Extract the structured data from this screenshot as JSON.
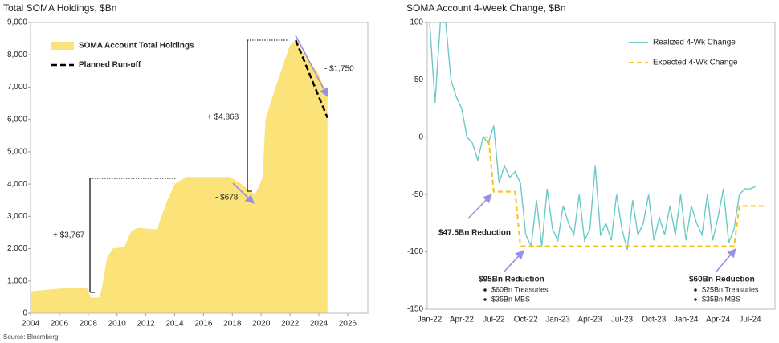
{
  "chart_data": [
    {
      "type": "area",
      "title": "Total SOMA Holdings, $Bn",
      "source": "Source: Bloomberg",
      "x": [
        2004,
        2005,
        2006,
        2007,
        2007.9,
        2008.2,
        2008.8,
        2009,
        2009.3,
        2009.7,
        2010.5,
        2011,
        2011.5,
        2012,
        2012.8,
        2013,
        2013.5,
        2014,
        2014.8,
        2016,
        2017.8,
        2018.5,
        2019.3,
        2019.6,
        2019.9,
        2020.1,
        2020.3,
        2021,
        2022,
        2022.4,
        2023,
        2024,
        2024.6
      ],
      "series": [
        {
          "name": "SOMA Account Total Holdings",
          "color": "#fbe37a",
          "values": [
            680,
            720,
            760,
            780,
            780,
            480,
            490,
            900,
            1700,
            2000,
            2050,
            2550,
            2650,
            2620,
            2600,
            2900,
            3500,
            4000,
            4220,
            4220,
            4220,
            4050,
            3750,
            3700,
            4000,
            4200,
            6000,
            7000,
            8300,
            8450,
            8000,
            7400,
            6700
          ]
        },
        {
          "name": "Planned Run-off",
          "color": "#000000",
          "dashed": true,
          "x": [
            2022.4,
            2024.6
          ],
          "values": [
            8450,
            6050
          ]
        }
      ],
      "xlim": [
        2004,
        2027.4
      ],
      "xticks": [
        2004,
        2006,
        2008,
        2010,
        2012,
        2014,
        2016,
        2018,
        2020,
        2022,
        2024,
        2026
      ],
      "ylim": [
        0,
        9000
      ],
      "yticks": [
        0,
        {
          "value": 1000,
          "label": "1,000"
        },
        {
          "value": 2000,
          "label": "2,000"
        },
        {
          "value": 3000,
          "label": "3,000"
        },
        {
          "value": 4000,
          "label": "4,000"
        },
        {
          "value": 5000,
          "label": "5,000"
        },
        {
          "value": 6000,
          "label": "6,000"
        },
        {
          "value": 7000,
          "label": "7,000"
        },
        {
          "value": 8000,
          "label": "8,000"
        },
        {
          "value": 9000,
          "label": "9,000"
        }
      ],
      "legend": "top-left",
      "annotations": [
        "+ $3,767",
        "- $678",
        "+ $4,868",
        "- $1,750"
      ]
    },
    {
      "type": "line",
      "title": "SOMA Account 4-Week Change, $Bn",
      "categories": [
        "Jan-22",
        null,
        null,
        null,
        null,
        null,
        "Apr-22",
        null,
        null,
        null,
        null,
        null,
        "Jul-22",
        null,
        null,
        null,
        null,
        null,
        "Oct-22",
        null,
        null,
        null,
        null,
        null,
        "Jan-23",
        null,
        null,
        null,
        null,
        null,
        "Apr-23",
        null,
        null,
        null,
        null,
        null,
        "Jul-23",
        null,
        null,
        null,
        null,
        null,
        "Oct-23",
        null,
        null,
        null,
        null,
        null,
        "Jan-24",
        null,
        null,
        null,
        null,
        null,
        "Apr-24",
        null,
        null,
        null,
        null,
        null,
        "Jul-24",
        null,
        null,
        null
      ],
      "series": [
        {
          "name": "Realized 4-Wk Change",
          "color": "#6ccac6",
          "values": [
            100,
            30,
            100,
            100,
            50,
            35,
            25,
            0,
            -5,
            -20,
            0,
            -5,
            10,
            -40,
            -25,
            -35,
            -30,
            -40,
            -85,
            -95,
            -55,
            -95,
            -45,
            -80,
            -90,
            -60,
            -75,
            -85,
            -50,
            -90,
            -80,
            -25,
            -85,
            -75,
            -90,
            -50,
            -80,
            -98,
            -55,
            -85,
            -75,
            -50,
            -90,
            -70,
            -85,
            -60,
            -85,
            -50,
            -90,
            -60,
            -75,
            -85,
            -50,
            -90,
            -70,
            -45,
            -92,
            -80,
            -50,
            -45,
            -45,
            -43,
            null,
            null
          ]
        },
        {
          "name": "Expected 4-Wk Change",
          "color": "#f7c21b",
          "dashed": true,
          "values": [
            null,
            null,
            null,
            null,
            null,
            null,
            null,
            null,
            null,
            null,
            0,
            0,
            -47.5,
            -47.5,
            -47.5,
            -47.5,
            -47.5,
            -95,
            -95,
            -95,
            -95,
            -95,
            -95,
            -95,
            -95,
            -95,
            -95,
            -95,
            -95,
            -95,
            -95,
            -95,
            -95,
            -95,
            -95,
            -95,
            -95,
            -95,
            -95,
            -95,
            -95,
            -95,
            -95,
            -95,
            -95,
            -95,
            -95,
            -95,
            -95,
            -95,
            -95,
            -95,
            -95,
            -95,
            -95,
            -95,
            -95,
            -95,
            -60,
            -60,
            -60,
            -60,
            -60,
            -60
          ]
        }
      ],
      "ylim": [
        -150,
        100
      ],
      "yticks": [
        -150,
        -100,
        -50,
        0,
        50,
        100
      ],
      "legend": "top-right",
      "annotations": [
        {
          "text": "$47.5Bn Reduction"
        },
        {
          "text": "$95Bn Reduction",
          "items": [
            "$60Bn Treasuries",
            "$35Bn MBS"
          ]
        },
        {
          "text": "$60Bn Reduction",
          "items": [
            "$25Bn Treasuries",
            "$35Bn MBS"
          ]
        }
      ]
    }
  ]
}
